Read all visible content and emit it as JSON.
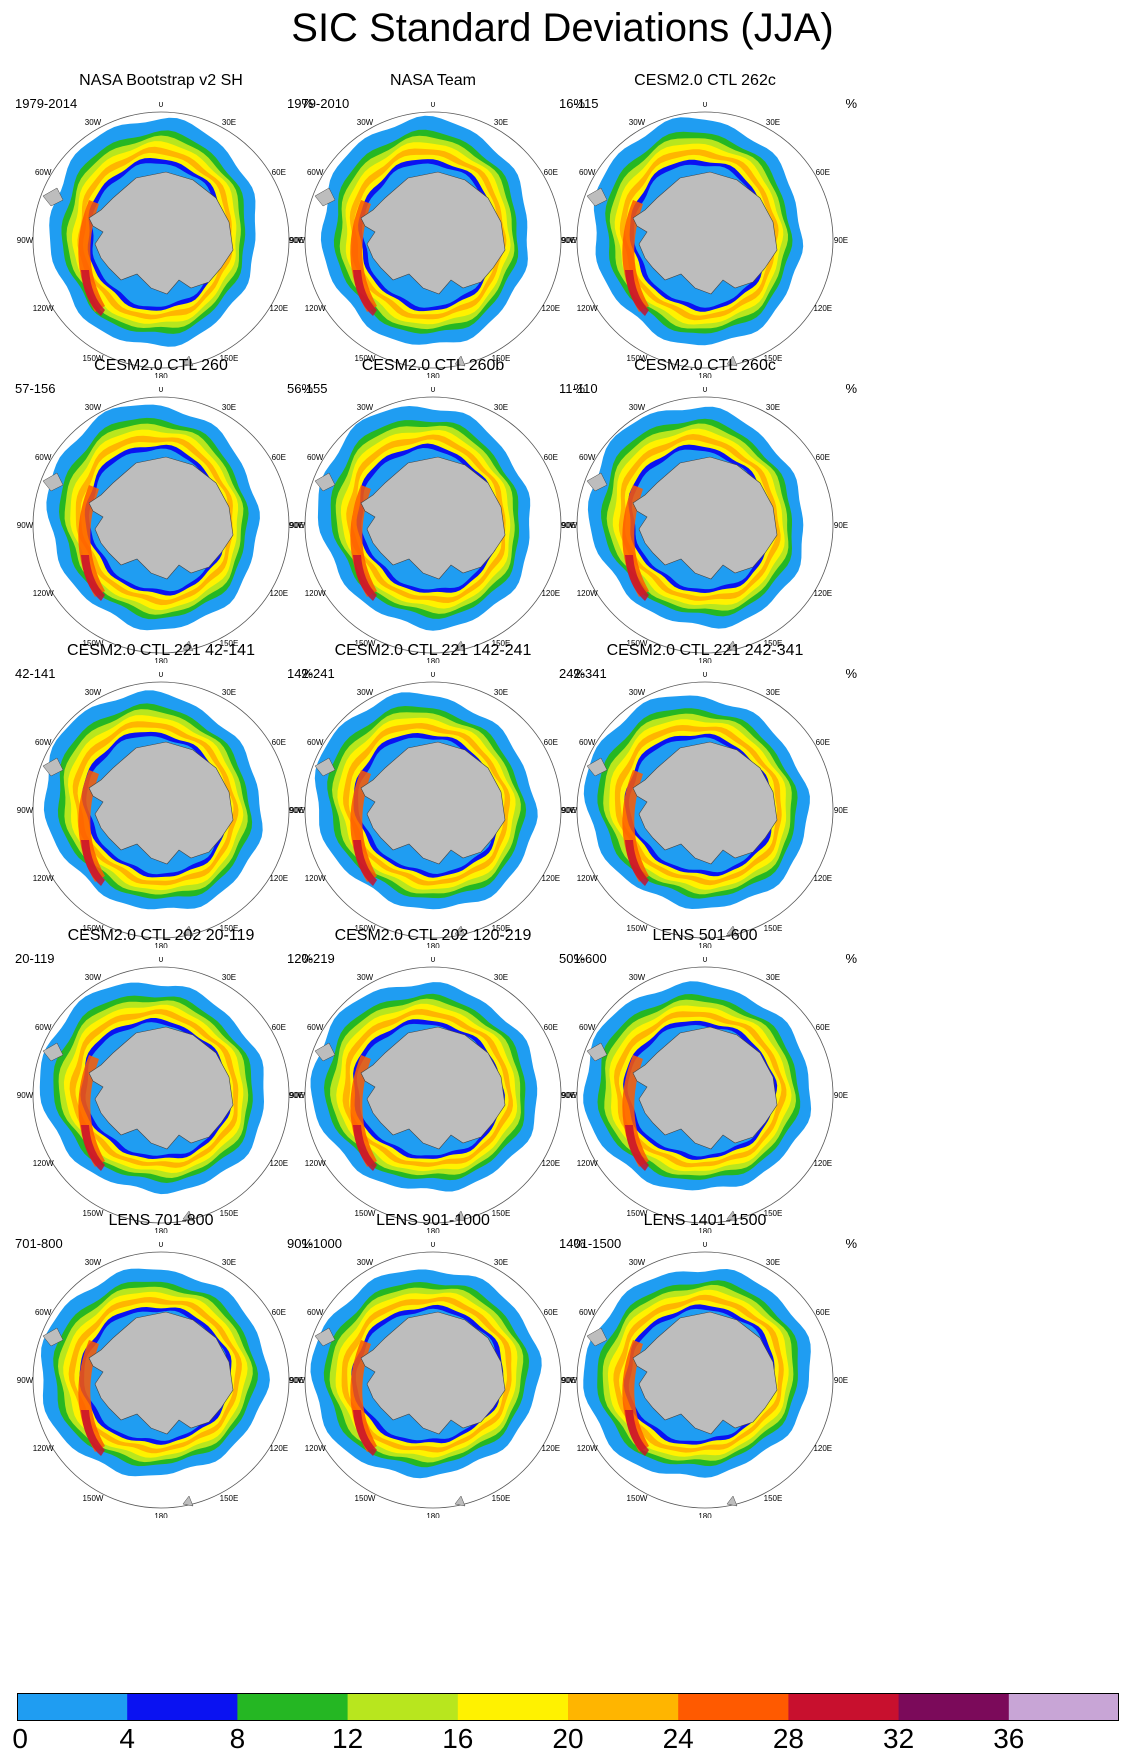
{
  "title": "SIC Standard Deviations (JJA)",
  "unit": "%",
  "colors": {
    "land": "#bdbdbd",
    "levels": [
      "#1f9df2",
      "#0a12f2",
      "#25b723",
      "#b8e61e",
      "#fff200",
      "#ffb500",
      "#ff5a00",
      "#c8102e",
      "#7b0a5a",
      "#c8a5d6"
    ]
  },
  "colorbar": {
    "labels": [
      "0",
      "4",
      "8",
      "12",
      "16",
      "20",
      "24",
      "28",
      "32",
      "36"
    ]
  },
  "map_labels": [
    "0",
    "30E",
    "60E",
    "90E",
    "120E",
    "150E",
    "180",
    "150W",
    "120W",
    "90W",
    "60W",
    "30W"
  ],
  "panels": [
    {
      "title": "NASA Bootstrap v2 SH",
      "years": "1979-2014"
    },
    {
      "title": "NASA Team",
      "years": "1979-2010"
    },
    {
      "title": "CESM2.0 CTL 262c",
      "years": "16-115"
    },
    {
      "title": "CESM2.0 CTL 260",
      "years": "57-156"
    },
    {
      "title": "CESM2.0 CTL 260b",
      "years": "56-155"
    },
    {
      "title": "CESM2.0 CTL 260c",
      "years": "11-110"
    },
    {
      "title": "CESM2.0 CTL 221 42-141",
      "years": "42-141"
    },
    {
      "title": "CESM2.0 CTL 221 142-241",
      "years": "142-241"
    },
    {
      "title": "CESM2.0 CTL 221 242-341",
      "years": "242-341"
    },
    {
      "title": "CESM2.0 CTL 202 20-119",
      "years": "20-119"
    },
    {
      "title": "CESM2.0 CTL 202 120-219",
      "years": "120-219"
    },
    {
      "title": "LENS 501-600",
      "years": "501-600"
    },
    {
      "title": "LENS 701-800",
      "years": "701-800"
    },
    {
      "title": "LENS 901-1000",
      "years": "901-1000"
    },
    {
      "title": "LENS 1401-1500",
      "years": "1401-1500"
    }
  ]
}
